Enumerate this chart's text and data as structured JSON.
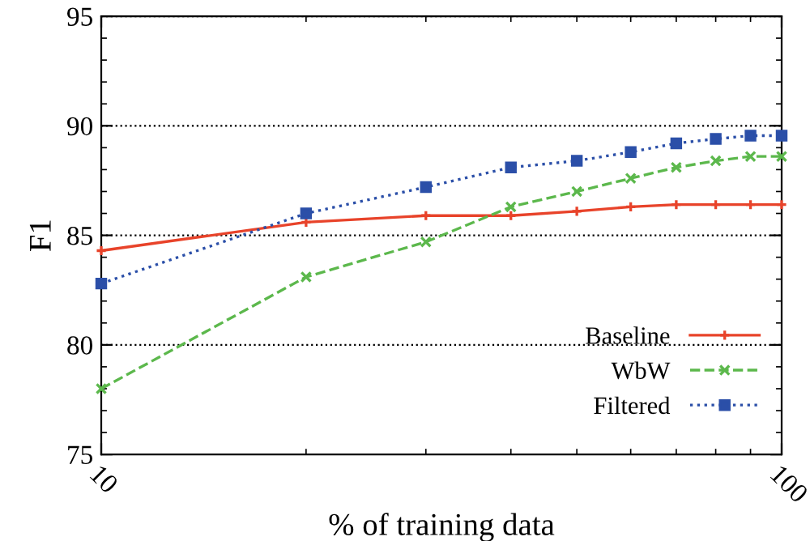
{
  "chart_data": {
    "type": "line",
    "xlabel": "% of training data",
    "ylabel": "F1",
    "x": [
      10,
      20,
      30,
      40,
      50,
      60,
      70,
      80,
      90,
      100
    ],
    "series": [
      {
        "name": "Baseline",
        "color": "#e8432a",
        "marker": "plus",
        "line_style": "solid",
        "values": [
          84.3,
          85.6,
          85.9,
          85.9,
          86.1,
          86.3,
          86.4,
          86.4,
          86.4,
          86.4
        ]
      },
      {
        "name": "WbW",
        "color": "#5cb84c",
        "marker": "cross",
        "line_style": "dashed",
        "values": [
          78.0,
          83.1,
          84.7,
          86.3,
          87.0,
          87.6,
          88.1,
          88.4,
          88.6,
          88.6
        ]
      },
      {
        "name": "Filtered",
        "color": "#2b4fa8",
        "marker": "square",
        "line_style": "dotted",
        "values": [
          82.8,
          86.0,
          87.2,
          88.1,
          88.4,
          88.8,
          89.2,
          89.4,
          89.55,
          89.55
        ]
      }
    ],
    "log": "x",
    "xlim": [
      10,
      100
    ],
    "xticks": [
      10,
      100
    ],
    "ylim": [
      75,
      95
    ],
    "yticks": [
      75,
      80,
      85,
      90,
      95
    ],
    "grid": "y",
    "legend": "bottom right"
  }
}
